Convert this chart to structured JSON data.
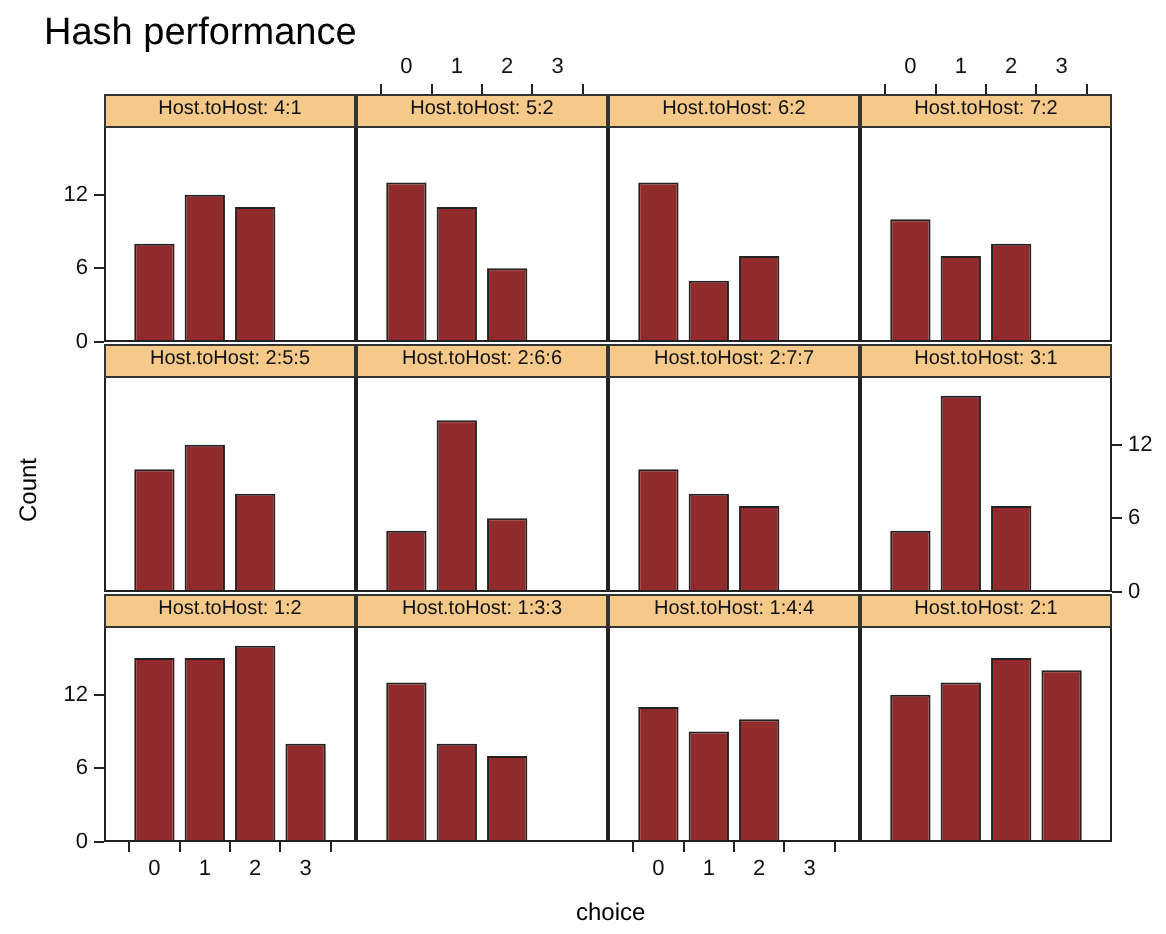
{
  "chart_data": [
    {
      "type": "bar",
      "title": "Hash performance",
      "subtitle": "Host.toHost: 4:1",
      "x": [
        0,
        1,
        2
      ],
      "values": [
        8,
        12,
        11
      ],
      "color": "#912a2a",
      "xlim": [
        -1,
        4
      ],
      "xticks": [
        0,
        1,
        2,
        3
      ],
      "ylim": [
        0,
        17.6
      ],
      "yticks": [
        0,
        6,
        12
      ],
      "tick_labels": "y"
    },
    {
      "type": "bar",
      "subtitle": "Host.toHost: 5:2",
      "x": [
        0,
        1,
        2
      ],
      "values": [
        13,
        11,
        6
      ],
      "color": "#912a2a",
      "xlim": [
        -1,
        4
      ],
      "xticks": [
        0,
        1,
        2,
        3
      ],
      "ylim": [
        0,
        17.6
      ],
      "yticks": [
        0,
        6,
        12
      ],
      "tick_labels": "x"
    },
    {
      "type": "bar",
      "subtitle": "Host.toHost: 6:2",
      "x": [
        0,
        1,
        2
      ],
      "values": [
        13,
        5,
        7
      ],
      "color": "#912a2a",
      "xlim": [
        -1,
        4
      ],
      "xticks": [
        0,
        1,
        2,
        3
      ],
      "ylim": [
        0,
        17.6
      ],
      "yticks": [
        0,
        6,
        12
      ],
      "tick_labels": false
    },
    {
      "type": "bar",
      "subtitle": "Host.toHost: 7:2",
      "x": [
        0,
        1,
        2
      ],
      "values": [
        10,
        7,
        8
      ],
      "color": "#912a2a",
      "xlim": [
        -1,
        4
      ],
      "xticks": [
        0,
        1,
        2,
        3
      ],
      "ylim": [
        0,
        17.6
      ],
      "yticks": [
        0,
        6,
        12
      ],
      "tick_labels": "x"
    },
    {
      "type": "bar",
      "subtitle": "Host.toHost: 2:5:5",
      "ylabel": "Count",
      "x": [
        0,
        1,
        2
      ],
      "values": [
        10,
        12,
        8
      ],
      "color": "#912a2a",
      "xlim": [
        -1,
        4
      ],
      "xticks": [
        0,
        1,
        2,
        3
      ],
      "ylim": [
        0,
        17.6
      ],
      "yticks": [
        0,
        6,
        12
      ],
      "tick_labels": false
    },
    {
      "type": "bar",
      "subtitle": "Host.toHost: 2:6:6",
      "x": [
        0,
        1,
        2
      ],
      "values": [
        5,
        14,
        6
      ],
      "color": "#912a2a",
      "xlim": [
        -1,
        4
      ],
      "xticks": [
        0,
        1,
        2,
        3
      ],
      "ylim": [
        0,
        17.6
      ],
      "yticks": [
        0,
        6,
        12
      ],
      "tick_labels": false
    },
    {
      "type": "bar",
      "subtitle": "Host.toHost: 2:7:7",
      "x": [
        0,
        1,
        2
      ],
      "values": [
        10,
        8,
        7
      ],
      "color": "#912a2a",
      "xlim": [
        -1,
        4
      ],
      "xticks": [
        0,
        1,
        2,
        3
      ],
      "ylim": [
        0,
        17.6
      ],
      "yticks": [
        0,
        6,
        12
      ],
      "tick_labels": false
    },
    {
      "type": "bar",
      "subtitle": "Host.toHost: 3:1",
      "x": [
        0,
        1,
        2
      ],
      "values": [
        5,
        16,
        7
      ],
      "color": "#912a2a",
      "xlim": [
        -1,
        4
      ],
      "xticks": [
        0,
        1,
        2,
        3
      ],
      "ylim": [
        0,
        17.6
      ],
      "yticks": [
        0,
        6,
        12
      ],
      "tick_labels": "y"
    },
    {
      "type": "bar",
      "subtitle": "Host.toHost: 1:2",
      "x": [
        0,
        1,
        2,
        3
      ],
      "values": [
        15,
        15,
        16,
        8
      ],
      "color": "#912a2a",
      "xlim": [
        -1,
        4
      ],
      "xticks": [
        0,
        1,
        2,
        3
      ],
      "ylim": [
        0,
        17.6
      ],
      "yticks": [
        0,
        6,
        12
      ]
    },
    {
      "type": "bar",
      "subtitle": "Host.toHost: 1:3:3",
      "xlabel": "choice",
      "x": [
        0,
        1,
        2
      ],
      "values": [
        13,
        8,
        7
      ],
      "color": "#912a2a",
      "xlim": [
        -1,
        4
      ],
      "xticks": [
        0,
        1,
        2,
        3
      ],
      "ylim": [
        0,
        17.6
      ],
      "yticks": [
        0,
        6,
        12
      ],
      "tick_labels": false
    },
    {
      "type": "bar",
      "subtitle": "Host.toHost: 1:4:4",
      "x": [
        0,
        1,
        2
      ],
      "values": [
        11,
        9,
        10
      ],
      "color": "#912a2a",
      "xlim": [
        -1,
        4
      ],
      "xticks": [
        0,
        1,
        2,
        3
      ],
      "ylim": [
        0,
        17.6
      ],
      "yticks": [
        0,
        6,
        12
      ],
      "tick_labels": "x"
    },
    {
      "type": "bar",
      "subtitle": "Host.toHost: 2:1",
      "x": [
        0,
        1,
        2,
        3
      ],
      "values": [
        12,
        13,
        15,
        14
      ],
      "color": "#912a2a",
      "xlim": [
        -1,
        4
      ],
      "xticks": [
        0,
        1,
        2,
        3
      ],
      "ylim": [
        0,
        17.6
      ],
      "yticks": [
        0,
        6,
        12
      ],
      "tick_labels": false
    }
  ]
}
